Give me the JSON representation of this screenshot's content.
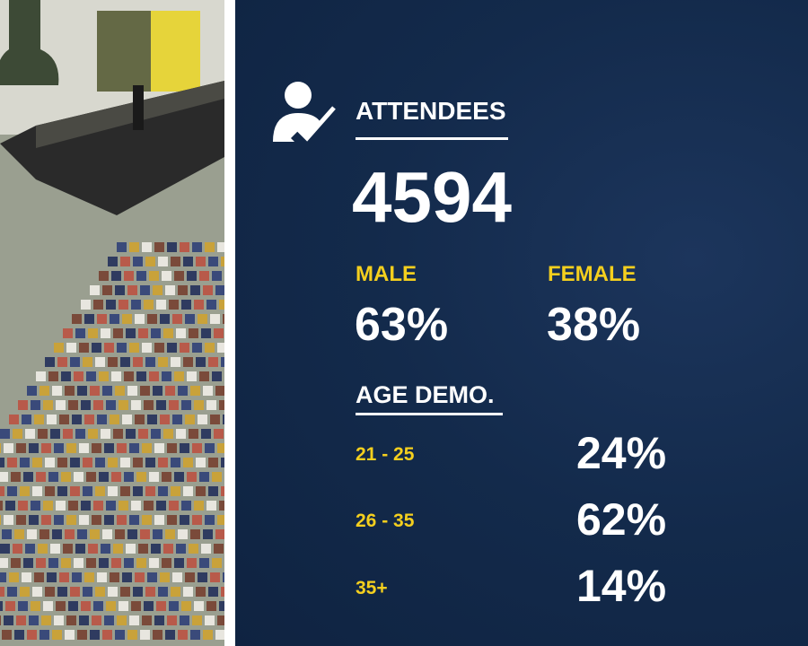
{
  "attendees": {
    "heading": "ATTENDEES",
    "count": "4594"
  },
  "gender": [
    {
      "label": "MALE",
      "value": "63%"
    },
    {
      "label": "FEMALE",
      "value": "38%"
    }
  ],
  "age": {
    "heading": "AGE DEMO.",
    "rows": [
      {
        "label": "21 - 25",
        "value": "24%"
      },
      {
        "label": "26 - 35",
        "value": "62%"
      },
      {
        "label": "35+",
        "value": "14%"
      }
    ]
  }
}
